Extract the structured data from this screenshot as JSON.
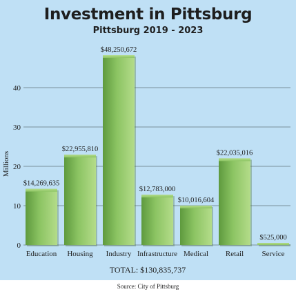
{
  "chart_data": {
    "type": "bar",
    "title": "Investment in Pittsburg",
    "subtitle": "Pittsburg 2019 - 2023",
    "ylabel": "Millions",
    "xlabel": "",
    "ylim": [
      0,
      48.25
    ],
    "yticks": [
      0,
      10,
      20,
      30,
      40
    ],
    "grid": true,
    "categories": [
      "Education",
      "Housing",
      "Industry",
      "Infrastructure",
      "Medical",
      "Retail",
      "Service"
    ],
    "values": [
      14.269635,
      22.95581,
      48.250672,
      12.783,
      10.016604,
      22.035016,
      0.525
    ],
    "data_labels": [
      "$14,269,635",
      "$22,955,810",
      "$48,250,672",
      "$12,783,000",
      "$10,016,604",
      "$22,035,016",
      "$525,000"
    ],
    "total_label": "TOTAL: $130,835,737",
    "source": "Source: City of Pittsburg",
    "colors": {
      "background": "#bfe0f5",
      "bar": "#8cc463",
      "bar_light": "#b4dc8a",
      "bar_dark": "#5e9a3e",
      "grid": "#7a8f9c",
      "text": "#1e1e1e"
    }
  }
}
